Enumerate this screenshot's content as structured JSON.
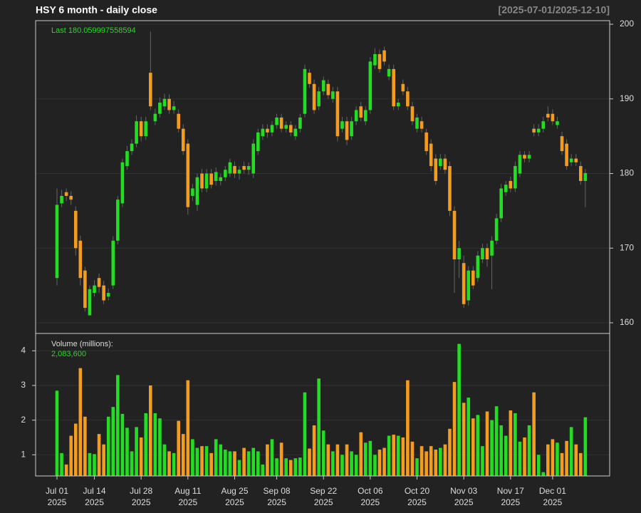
{
  "chart_data": {
    "type": "candlestick",
    "title": "HSY  6 month - daily close",
    "subtitle": "[2025-07-01/2025-12-10]",
    "annotation": "Last 180.059997558594",
    "up_color": "#22dd22",
    "down_color": "#f39c1e",
    "grid": true,
    "xlim": [
      -4.57,
      118.2
    ],
    "xticks": [
      {
        "value": 0,
        "label": "Jul 01\n2025"
      },
      {
        "value": 8,
        "label": "Jul 14\n2025"
      },
      {
        "value": 18,
        "label": "Jul 28\n2025"
      },
      {
        "value": 28,
        "label": "Aug 11\n2025"
      },
      {
        "value": 38,
        "label": "Aug 25\n2025"
      },
      {
        "value": 47,
        "label": "Sep 08\n2025"
      },
      {
        "value": 57,
        "label": "Sep 22\n2025"
      },
      {
        "value": 67,
        "label": "Oct 06\n2025"
      },
      {
        "value": 77,
        "label": "Oct 20\n2025"
      },
      {
        "value": 87,
        "label": "Nov 03\n2025"
      },
      {
        "value": 97,
        "label": "Nov 17\n2025"
      },
      {
        "value": 106,
        "label": "Dec 01\n2025"
      }
    ],
    "ylim": [
      158.57,
      200.48
    ],
    "yticks": [
      160,
      170,
      180,
      190,
      200
    ],
    "open": [
      166,
      176,
      177.5,
      177,
      175,
      171,
      167,
      161,
      164,
      166,
      165,
      163.5,
      165,
      171,
      176,
      181,
      183,
      184,
      187,
      185,
      193.5,
      187,
      188,
      189,
      190,
      188.5,
      188,
      186,
      184,
      177,
      175.8,
      180,
      178,
      180,
      179,
      179,
      179.5,
      180,
      181,
      180,
      181,
      180.5,
      180,
      183,
      185,
      186,
      185.5,
      186.5,
      187.5,
      186,
      186.5,
      185,
      186,
      188,
      193.5,
      192,
      189,
      191,
      192,
      190,
      191,
      186,
      187,
      185,
      187,
      189,
      187,
      188.5,
      194.5,
      196,
      196.5,
      193,
      194,
      189,
      192,
      191,
      189,
      186,
      187,
      185.5,
      184,
      182,
      181,
      182,
      181,
      175,
      168.5,
      168,
      163,
      167,
      166,
      168.5,
      170,
      169,
      171,
      174,
      177.5,
      179,
      178,
      180,
      182.5,
      182,
      186,
      185.5,
      186,
      188,
      188,
      186.5,
      185,
      184,
      181.5,
      182,
      181,
      179
    ],
    "high": [
      178,
      177.8,
      178,
      177.6,
      175.6,
      171.7,
      167.5,
      165,
      165.7,
      166.6,
      165.6,
      164.6,
      171.6,
      177,
      182,
      183.7,
      184.6,
      187.8,
      187.6,
      187.6,
      199,
      188.7,
      190.2,
      190.7,
      190.6,
      189.7,
      188.6,
      186.6,
      184.6,
      178.6,
      180,
      180.6,
      180.6,
      180.6,
      180.8,
      180,
      181,
      182,
      181.6,
      181,
      181.6,
      181.5,
      184.6,
      186,
      186.6,
      186.6,
      187,
      188,
      188,
      187,
      187,
      186.5,
      188,
      194.6,
      194,
      192.6,
      191.6,
      193,
      192.6,
      191.6,
      191.6,
      187.6,
      187.6,
      187.6,
      189,
      189.6,
      189,
      195.6,
      196.8,
      196.6,
      197,
      194.6,
      194.6,
      190,
      192.6,
      191.6,
      189.6,
      188,
      187.6,
      186,
      184.6,
      182.6,
      182.6,
      182.6,
      181.6,
      175.6,
      171,
      169,
      167.6,
      167.6,
      169.6,
      170.6,
      170.6,
      171.6,
      174.6,
      178.6,
      179,
      179.6,
      181.6,
      183,
      183,
      183,
      186.6,
      186.6,
      187.6,
      189,
      188.6,
      187.6,
      185.6,
      184.6,
      182.6,
      182.6,
      181.6,
      180.6
    ],
    "low": [
      165,
      175.5,
      176.3,
      175.8,
      169,
      165,
      161.5,
      161,
      163.5,
      164,
      162.5,
      163,
      164.5,
      170.5,
      175.5,
      180.5,
      182.5,
      183.5,
      184.3,
      184.5,
      188.5,
      186.5,
      187.5,
      188.5,
      188,
      188,
      185.5,
      182.5,
      174.5,
      176.3,
      175,
      177.5,
      177.5,
      178,
      178.4,
      178.4,
      179,
      179.5,
      179.4,
      179.2,
      180,
      179.8,
      179.4,
      182.5,
      184.5,
      184.8,
      185,
      186,
      185.5,
      185.5,
      185,
      184.5,
      185.5,
      187.5,
      191.5,
      188,
      188.5,
      190.5,
      190,
      189.5,
      184.3,
      185.5,
      183.8,
      184.5,
      186.5,
      187,
      186.5,
      188,
      194,
      193.5,
      194.5,
      192.5,
      188.5,
      188.5,
      190.5,
      188.5,
      186.5,
      185.5,
      185.5,
      182.5,
      180.3,
      178.5,
      180.5,
      180,
      174.3,
      164,
      166,
      162,
      162.3,
      164.5,
      165.5,
      168,
      167.5,
      164.5,
      170.5,
      173.5,
      177,
      177.5,
      177.5,
      179.5,
      181.5,
      181.5,
      185,
      185,
      185.5,
      187,
      186.5,
      186,
      182.5,
      180.5,
      181,
      181,
      178.5,
      175.5
    ],
    "close": [
      175.8,
      177,
      177,
      176.5,
      170,
      166,
      162,
      164.5,
      165,
      164.8,
      163,
      164,
      171,
      176.5,
      181.5,
      183,
      184,
      187,
      185,
      187,
      189,
      188,
      189.5,
      190,
      188.5,
      189,
      186,
      183,
      175.5,
      178,
      179.5,
      178,
      180,
      178.5,
      180.2,
      179.5,
      180.5,
      181.5,
      180,
      180.5,
      180.5,
      181,
      184,
      185.5,
      186,
      185.5,
      186.5,
      187.5,
      186,
      186.5,
      185.5,
      186,
      187.5,
      194,
      192,
      188.5,
      191,
      192.5,
      190.5,
      191,
      185,
      187,
      184.5,
      187,
      188.5,
      187.5,
      188.5,
      195,
      196,
      194,
      195,
      194,
      189,
      189.5,
      191,
      189,
      187,
      187.5,
      186,
      183,
      181,
      179,
      182,
      180.5,
      175,
      168.5,
      170,
      162.5,
      167,
      165,
      169,
      170,
      168.5,
      171,
      174,
      178,
      178.5,
      178,
      181,
      182.5,
      182,
      182.5,
      185.5,
      186,
      187,
      187.5,
      187,
      187,
      183,
      181,
      182,
      181.5,
      179,
      180.059997558594
    ],
    "volume": {
      "label": "Volume (millions):",
      "annotation": "2,083,600",
      "ylim": [
        0.39,
        4.5
      ],
      "yticks": [
        1,
        2,
        3,
        4
      ],
      "values": [
        2.85,
        1.05,
        0.72,
        1.55,
        1.9,
        3.5,
        2.1,
        1.05,
        1.02,
        1.6,
        1.3,
        2.1,
        2.38,
        3.3,
        2.18,
        1.78,
        1.1,
        1.8,
        1.5,
        2.2,
        3.0,
        2.2,
        2.05,
        1.3,
        1.1,
        1.05,
        1.98,
        1.6,
        3.15,
        1.45,
        1.2,
        1.25,
        1.25,
        1.05,
        1.45,
        1.3,
        1.15,
        1.1,
        1.1,
        0.85,
        1.2,
        1.1,
        1.2,
        1.1,
        0.72,
        1.3,
        1.45,
        0.9,
        1.35,
        0.9,
        0.85,
        0.9,
        0.92,
        2.8,
        1.18,
        1.85,
        3.2,
        1.7,
        1.3,
        1.1,
        1.3,
        1.0,
        1.3,
        1.1,
        1.0,
        1.65,
        1.35,
        1.4,
        1.0,
        1.15,
        1.2,
        1.55,
        1.58,
        1.55,
        1.5,
        3.15,
        1.38,
        0.9,
        1.25,
        1.1,
        1.25,
        1.15,
        1.2,
        1.3,
        1.75,
        3.1,
        4.2,
        2.5,
        2.65,
        2.05,
        2.15,
        1.25,
        2.25,
        2.0,
        2.4,
        1.85,
        1.55,
        2.28,
        2.2,
        1.38,
        1.5,
        1.85,
        2.8,
        1.0,
        0.5,
        1.3,
        1.45,
        1.35,
        1.05,
        1.4,
        1.8,
        1.3,
        1.05,
        2.0836
      ]
    }
  }
}
